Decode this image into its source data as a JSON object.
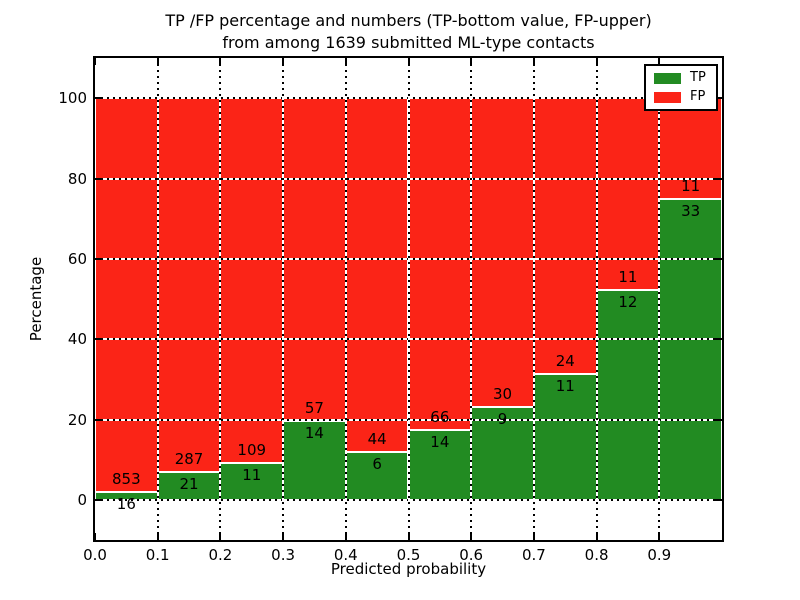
{
  "title": {
    "line1": "TP /FP percentage and numbers (TP-bottom value, FP-upper)",
    "line2": "from among 1639 submitted ML-type contacts"
  },
  "chart_data": {
    "type": "bar",
    "stacked": true,
    "normalized_to_percent": true,
    "title": "TP /FP percentage and numbers (TP-bottom value, FP-upper) from among 1639 submitted ML-type contacts",
    "xlabel": "Predicted probability",
    "ylabel": "Percentage",
    "total_contacts_in_title": 1639,
    "categories": [
      "0.0-0.1",
      "0.1-0.2",
      "0.2-0.3",
      "0.3-0.4",
      "0.4-0.5",
      "0.5-0.6",
      "0.6-0.7",
      "0.7-0.8",
      "0.8-0.9",
      "0.9-1.0"
    ],
    "bin_width": 0.1,
    "series": [
      {
        "name": "TP",
        "color": "#228b22",
        "counts": [
          16,
          21,
          11,
          14,
          6,
          14,
          9,
          11,
          12,
          33
        ],
        "percent": [
          1.8,
          6.8,
          9.2,
          19.7,
          12.0,
          17.5,
          23.1,
          31.4,
          52.2,
          75.0
        ]
      },
      {
        "name": "FP",
        "color": "#fb2417",
        "counts": [
          853,
          287,
          109,
          57,
          44,
          66,
          30,
          24,
          11,
          11
        ],
        "percent": [
          98.2,
          93.2,
          90.8,
          80.3,
          88.0,
          82.5,
          76.9,
          68.6,
          47.8,
          25.0
        ]
      }
    ],
    "xlim": [
      0.0,
      1.0
    ],
    "ylim": [
      -10,
      110
    ],
    "x_tick_labels": [
      "0.0",
      "0.1",
      "0.2",
      "0.3",
      "0.4",
      "0.5",
      "0.6",
      "0.7",
      "0.8",
      "0.9"
    ],
    "y_tick_labels": [
      "0",
      "20",
      "40",
      "60",
      "80",
      "100"
    ],
    "y_tick_values": [
      0,
      20,
      40,
      60,
      80,
      100
    ],
    "grid": true,
    "grid_style": "dotted",
    "legend_position": "upper right"
  },
  "legend": {
    "items": [
      {
        "label": "TP",
        "color": "#228b22"
      },
      {
        "label": "FP",
        "color": "#fb2417"
      }
    ]
  }
}
